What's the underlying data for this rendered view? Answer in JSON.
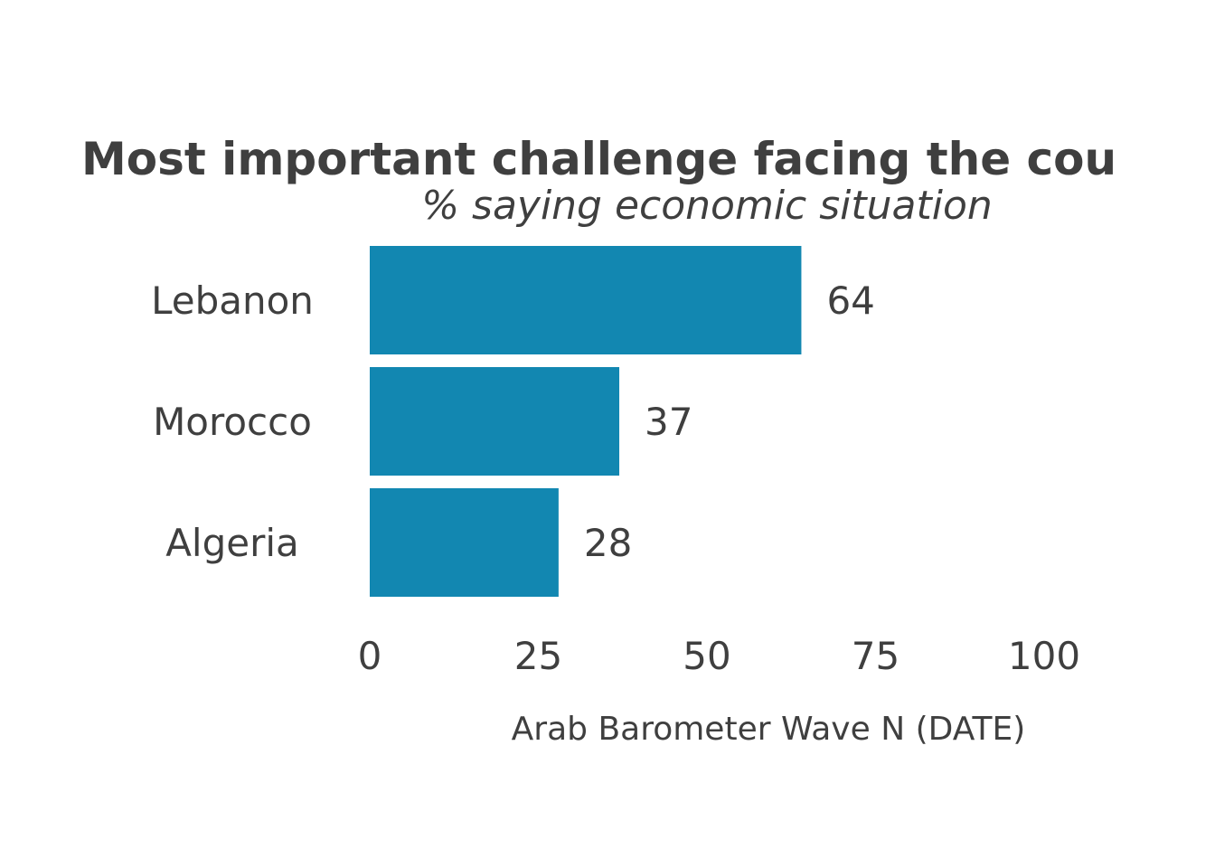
{
  "colors": {
    "text": "#3f3f3f",
    "bar": "#1287b1",
    "background": "#ffffff"
  },
  "chart_data": {
    "type": "bar",
    "orientation": "horizontal",
    "title": "Most important challenge facing the cou",
    "subtitle": "% saying economic situation",
    "categories": [
      "Lebanon",
      "Morocco",
      "Algeria"
    ],
    "values": [
      64,
      37,
      28
    ],
    "data_labels": [
      "64",
      "37",
      "28"
    ],
    "xlim": [
      0,
      100
    ],
    "x_ticks": [
      0,
      25,
      50,
      75,
      100
    ],
    "x_tick_labels": [
      "0",
      "25",
      "50",
      "75",
      "100"
    ],
    "xlabel": "Arab Barometer Wave N (DATE)",
    "ylabel": "",
    "grid": false,
    "legend": "none"
  }
}
